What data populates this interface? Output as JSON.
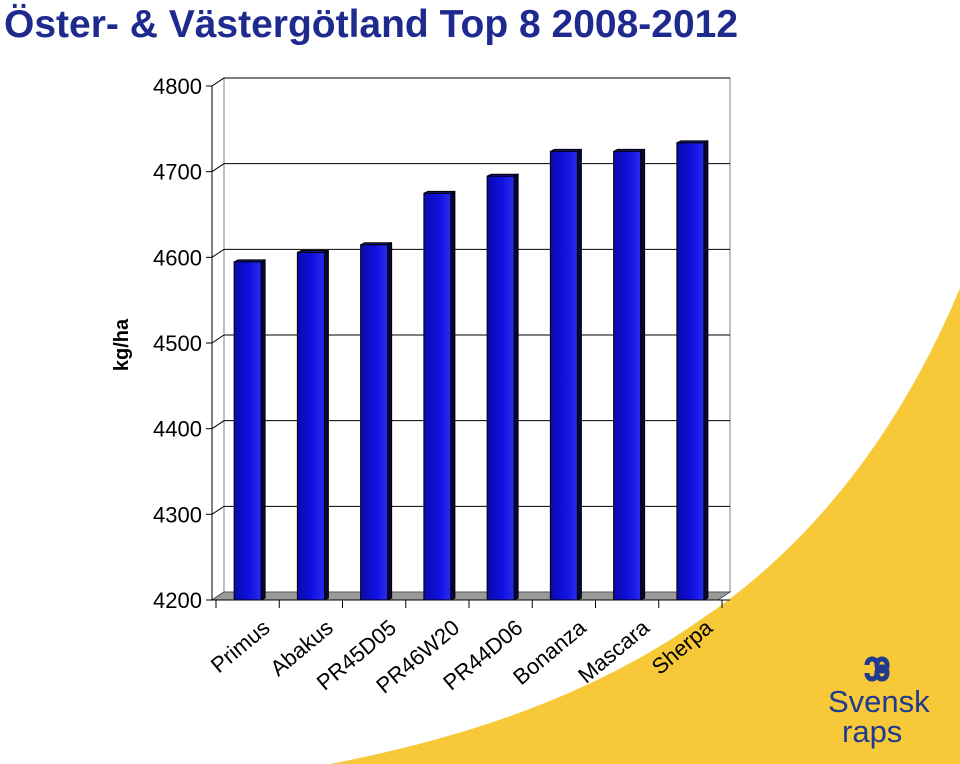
{
  "title": "Öster- & Västergötland Top 8 2008-2012",
  "logo": {
    "line1": "Svensk",
    "line2": "raps"
  },
  "colors": {
    "title": "#1f2a8f",
    "bar_front": "#1010e0",
    "bar_side": "#06063a",
    "bar_top": "#1a1a80",
    "accent": "#f7c837",
    "floor": "#9a9a9a"
  },
  "chart_data": {
    "type": "bar",
    "title": "Öster- & Västergötland Top 8 2008-2012",
    "xlabel": "",
    "ylabel": "kg/ha",
    "categories": [
      "Primus",
      "Abakus",
      "PR45D05",
      "PR46W20",
      "PR44D06",
      "Bonanza",
      "Mascara",
      "Sherpa"
    ],
    "values": [
      4597,
      4608,
      4617,
      4677,
      4697,
      4726,
      4726,
      4736
    ],
    "ylim": [
      4200,
      4800
    ],
    "yticks": [
      4800,
      4700,
      4600,
      4500,
      4400,
      4300,
      4200
    ],
    "grid": true,
    "legend": "none"
  }
}
